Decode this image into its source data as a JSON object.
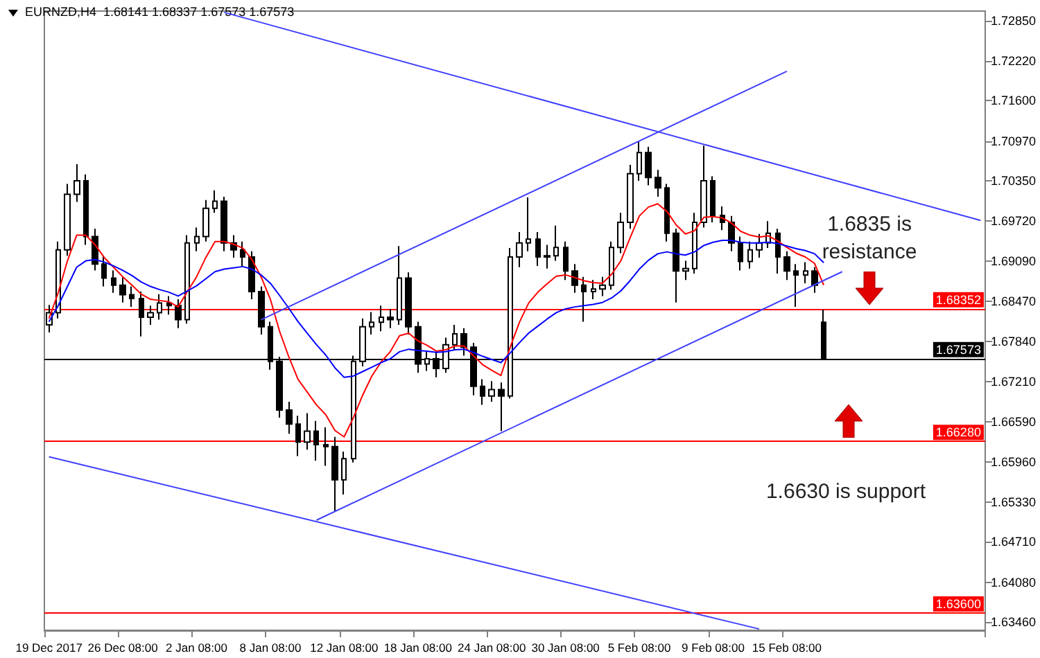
{
  "chart_data": {
    "type": "candlestick",
    "title": "EURNZD,H4  1.68141 1.68337 1.67573 1.67573",
    "categories": [
      "19 Dec 2017",
      null,
      null,
      null,
      null,
      null,
      null,
      null,
      "26 Dec 08:00",
      null,
      null,
      null,
      null,
      null,
      null,
      null,
      "2 Jan 08:00",
      null,
      null,
      null,
      null,
      null,
      null,
      null,
      "8 Jan 08:00",
      null,
      null,
      null,
      null,
      null,
      null,
      null,
      "12 Jan 08:00",
      null,
      null,
      null,
      null,
      null,
      null,
      null,
      "18 Jan 08:00",
      null,
      null,
      null,
      null,
      null,
      null,
      null,
      "24 Jan 08:00",
      null,
      null,
      null,
      null,
      null,
      null,
      null,
      "30 Jan 08:00",
      null,
      null,
      null,
      null,
      null,
      null,
      null,
      "5 Feb 08:00",
      null,
      null,
      null,
      null,
      null,
      null,
      null,
      "9 Feb 08:00",
      null,
      null,
      null,
      null,
      null,
      null,
      null,
      "15 Feb 08:00",
      null,
      null,
      null,
      null,
      null,
      null,
      null,
      null,
      null,
      null,
      null,
      null,
      null,
      null,
      null,
      null,
      null,
      null,
      null,
      null,
      null
    ],
    "color": "#000000",
    "ohlc": [
      [
        1.681,
        1.6841,
        1.6798,
        1.6829
      ],
      [
        1.6829,
        1.694,
        1.682,
        1.6927
      ],
      [
        1.6927,
        1.703,
        1.6918,
        1.7014
      ],
      [
        1.7014,
        1.7061,
        1.7002,
        1.7035
      ],
      [
        1.7035,
        1.7045,
        1.6935,
        1.6948
      ],
      [
        1.6948,
        1.696,
        1.6895,
        1.6905
      ],
      [
        1.6905,
        1.6918,
        1.687,
        1.6883
      ],
      [
        1.6883,
        1.6895,
        1.686,
        1.6872
      ],
      [
        1.6872,
        1.6884,
        1.6845,
        1.6857
      ],
      [
        1.6857,
        1.687,
        1.6838,
        1.6851
      ],
      [
        1.6851,
        1.6862,
        1.6792,
        1.6822
      ],
      [
        1.6822,
        1.684,
        1.681,
        1.6829
      ],
      [
        1.6829,
        1.6858,
        1.6818,
        1.6844
      ],
      [
        1.6844,
        1.6855,
        1.6826,
        1.684
      ],
      [
        1.684,
        1.685,
        1.6805,
        1.6818
      ],
      [
        1.6818,
        1.695,
        1.6812,
        1.6938
      ],
      [
        1.6938,
        1.6962,
        1.6925,
        1.6948
      ],
      [
        1.6948,
        1.7005,
        1.694,
        1.6992
      ],
      [
        1.6992,
        1.702,
        1.6985,
        1.7003
      ],
      [
        1.7003,
        1.701,
        1.6925,
        1.6938
      ],
      [
        1.6938,
        1.695,
        1.6915,
        1.6927
      ],
      [
        1.6927,
        1.694,
        1.69,
        1.6916
      ],
      [
        1.6916,
        1.6925,
        1.685,
        1.6862
      ],
      [
        1.6862,
        1.687,
        1.6795,
        1.6807
      ],
      [
        1.6807,
        1.6815,
        1.674,
        1.6753
      ],
      [
        1.6753,
        1.676,
        1.6665,
        1.6677
      ],
      [
        1.6677,
        1.669,
        1.664,
        1.6655
      ],
      [
        1.6655,
        1.6668,
        1.6605,
        1.6627
      ],
      [
        1.6627,
        1.6672,
        1.6615,
        1.6644
      ],
      [
        1.6644,
        1.666,
        1.6598,
        1.6623
      ],
      [
        1.6623,
        1.665,
        1.659,
        1.662
      ],
      [
        1.662,
        1.6635,
        1.6518,
        1.6568
      ],
      [
        1.6568,
        1.6612,
        1.6545,
        1.6601
      ],
      [
        1.6601,
        1.6762,
        1.6595,
        1.6753
      ],
      [
        1.6753,
        1.682,
        1.6745,
        1.6807
      ],
      [
        1.6807,
        1.683,
        1.6795,
        1.6814
      ],
      [
        1.6814,
        1.684,
        1.68,
        1.6822
      ],
      [
        1.6822,
        1.6835,
        1.6805,
        1.6818
      ],
      [
        1.6818,
        1.6933,
        1.681,
        1.6883
      ],
      [
        1.6883,
        1.6892,
        1.6795,
        1.6807
      ],
      [
        1.6807,
        1.6815,
        1.6735,
        1.6749
      ],
      [
        1.6749,
        1.677,
        1.6738,
        1.6757
      ],
      [
        1.6757,
        1.6768,
        1.6728,
        1.6742
      ],
      [
        1.6742,
        1.679,
        1.6735,
        1.6779
      ],
      [
        1.6779,
        1.681,
        1.677,
        1.6796
      ],
      [
        1.6796,
        1.6805,
        1.6762,
        1.6775
      ],
      [
        1.6775,
        1.6782,
        1.67,
        1.6714
      ],
      [
        1.6714,
        1.6725,
        1.6685,
        1.6699
      ],
      [
        1.6699,
        1.6722,
        1.669,
        1.6709
      ],
      [
        1.6709,
        1.672,
        1.6644,
        1.6699
      ],
      [
        1.6699,
        1.693,
        1.6695,
        1.6916
      ],
      [
        1.6916,
        1.6955,
        1.69,
        1.6938
      ],
      [
        1.6938,
        1.7009,
        1.6925,
        1.6944
      ],
      [
        1.6944,
        1.6955,
        1.6902,
        1.6916
      ],
      [
        1.6916,
        1.6935,
        1.6898,
        1.6918
      ],
      [
        1.6918,
        1.6965,
        1.691,
        1.6931
      ],
      [
        1.6931,
        1.694,
        1.688,
        1.6894
      ],
      [
        1.6894,
        1.6905,
        1.686,
        1.6872
      ],
      [
        1.6872,
        1.6885,
        1.6815,
        1.6862
      ],
      [
        1.6862,
        1.688,
        1.685,
        1.6866
      ],
      [
        1.6866,
        1.6885,
        1.6855,
        1.6872
      ],
      [
        1.6872,
        1.694,
        1.6865,
        1.6931
      ],
      [
        1.6931,
        1.6985,
        1.6922,
        1.697
      ],
      [
        1.697,
        1.706,
        1.696,
        1.7046
      ],
      [
        1.7046,
        1.7096,
        1.7035,
        1.7079
      ],
      [
        1.7079,
        1.7088,
        1.7028,
        1.704
      ],
      [
        1.704,
        1.7052,
        1.701,
        1.7024
      ],
      [
        1.7024,
        1.703,
        1.694,
        1.6953
      ],
      [
        1.6953,
        1.696,
        1.6845,
        1.6894
      ],
      [
        1.6894,
        1.691,
        1.688,
        1.6898
      ],
      [
        1.6898,
        1.6985,
        1.689,
        1.697
      ],
      [
        1.697,
        1.709,
        1.6962,
        1.7035
      ],
      [
        1.7035,
        1.7042,
        1.697,
        1.6981
      ],
      [
        1.6981,
        1.6995,
        1.6958,
        1.697
      ],
      [
        1.697,
        1.698,
        1.6925,
        1.6938
      ],
      [
        1.6938,
        1.6948,
        1.6895,
        1.6909
      ],
      [
        1.6909,
        1.694,
        1.6898,
        1.6927
      ],
      [
        1.6927,
        1.6952,
        1.6915,
        1.6938
      ],
      [
        1.6938,
        1.6972,
        1.693,
        1.6953
      ],
      [
        1.6953,
        1.696,
        1.689,
        1.6916
      ],
      [
        1.6916,
        1.6925,
        1.688,
        1.6894
      ],
      [
        1.6894,
        1.6905,
        1.6838,
        1.6888
      ],
      [
        1.6888,
        1.6908,
        1.6875,
        1.6894
      ],
      [
        1.6894,
        1.69,
        1.686,
        1.6872
      ],
      [
        1.68141,
        1.68337,
        1.67573,
        1.67573
      ],
      null,
      null,
      null,
      null,
      null,
      null,
      null,
      null,
      null,
      null,
      null,
      null,
      null,
      null,
      null,
      null,
      null
    ],
    "series": [
      {
        "type": "line",
        "color": "#ff0000",
        "values": [
          1.682,
          1.686,
          1.691,
          1.695,
          1.695,
          1.6935,
          1.6915,
          1.69,
          1.6885,
          1.6872,
          1.6858,
          1.685,
          1.6848,
          1.6846,
          1.6838,
          1.6862,
          1.6885,
          1.6915,
          1.694,
          1.694,
          1.6936,
          1.693,
          1.6912,
          1.6885,
          1.685,
          1.68,
          1.676,
          1.6725,
          1.6705,
          1.6685,
          1.667,
          1.6645,
          1.6635,
          1.6665,
          1.67,
          1.673,
          1.6752,
          1.6768,
          1.6793,
          1.6797,
          1.6785,
          1.6778,
          1.6769,
          1.6771,
          1.6777,
          1.6777,
          1.6762,
          1.6748,
          1.6739,
          1.6731,
          1.6775,
          1.6814,
          1.6844,
          1.6861,
          1.6874,
          1.6886,
          1.6888,
          1.6884,
          1.6879,
          1.6876,
          1.6875,
          1.6889,
          1.691,
          1.6946,
          1.698,
          1.6994,
          1.6999,
          1.6987,
          1.6966,
          1.6952,
          1.6957,
          1.6978,
          1.6979,
          1.6977,
          1.6969,
          1.6956,
          1.695,
          1.6947,
          1.6949,
          1.6941,
          1.6931,
          1.6922,
          1.6916,
          1.6906,
          1.6872,
          null,
          null,
          null,
          null,
          null,
          null,
          null,
          null,
          null,
          null,
          null,
          null,
          null,
          null,
          null,
          null,
          null
        ]
      },
      {
        "type": "line",
        "color": "#0000ff",
        "values": [
          1.6815,
          1.684,
          1.687,
          1.69,
          1.691,
          1.6912,
          1.6908,
          1.6902,
          1.6895,
          1.6887,
          1.6877,
          1.687,
          1.6865,
          1.6861,
          1.6855,
          1.6863,
          1.6871,
          1.6882,
          1.6893,
          1.6897,
          1.6899,
          1.6901,
          1.6897,
          1.6888,
          1.6875,
          1.6856,
          1.6836,
          1.6815,
          1.6797,
          1.6779,
          1.6763,
          1.6743,
          1.6728,
          1.673,
          1.6737,
          1.6744,
          1.6751,
          1.6757,
          1.6768,
          1.6772,
          1.677,
          1.6769,
          1.6767,
          1.6768,
          1.6771,
          1.6772,
          1.6767,
          1.6761,
          1.6756,
          1.6751,
          1.6766,
          1.6782,
          1.6797,
          1.6808,
          1.6819,
          1.6829,
          1.6835,
          1.6838,
          1.684,
          1.6842,
          1.6845,
          1.6852,
          1.6863,
          1.6879,
          1.6897,
          1.6911,
          1.6921,
          1.6924,
          1.6921,
          1.6919,
          1.6924,
          1.6934,
          1.6939,
          1.6942,
          1.6942,
          1.6939,
          1.6938,
          1.6938,
          1.6939,
          1.6937,
          1.6933,
          1.6929,
          1.6926,
          1.6921,
          1.6907,
          null,
          null,
          null,
          null,
          null,
          null,
          null,
          null,
          null,
          null,
          null,
          null,
          null,
          null,
          null,
          null,
          null
        ]
      },
      {
        "type": "line",
        "color": "#4040ff",
        "values": [
          null,
          null,
          null,
          null,
          null,
          null,
          null,
          null,
          null,
          null,
          null,
          null,
          null,
          null,
          null,
          null,
          null,
          null,
          null,
          1.7298,
          null,
          null,
          null,
          null,
          null,
          null,
          null,
          null,
          null,
          null,
          null,
          null,
          null,
          null,
          null,
          null,
          null,
          null,
          null,
          null,
          null,
          null,
          null,
          null,
          null,
          null,
          null,
          null,
          null,
          null,
          null,
          null,
          null,
          null,
          null,
          null,
          null,
          null,
          null,
          null,
          null,
          null,
          null,
          null,
          null,
          null,
          null,
          null,
          null,
          null,
          null,
          null,
          null,
          null,
          null,
          null,
          null,
          null,
          null,
          null,
          null,
          null,
          null,
          null,
          null,
          null,
          null,
          null,
          null,
          null,
          null,
          null,
          null,
          null,
          null,
          null,
          null,
          null,
          null,
          null,
          null,
          1.6973
        ]
      },
      {
        "type": "line",
        "color": "#4040ff",
        "values": [
          1.6604,
          null,
          null,
          null,
          null,
          null,
          null,
          null,
          null,
          null,
          null,
          null,
          null,
          null,
          null,
          null,
          null,
          null,
          null,
          null,
          null,
          null,
          null,
          null,
          null,
          null,
          null,
          null,
          null,
          null,
          null,
          null,
          null,
          null,
          null,
          null,
          null,
          null,
          null,
          null,
          null,
          null,
          null,
          null,
          null,
          null,
          null,
          null,
          null,
          null,
          null,
          null,
          null,
          null,
          null,
          null,
          null,
          null,
          null,
          null,
          null,
          null,
          null,
          null,
          null,
          null,
          null,
          null,
          null,
          null,
          null,
          null,
          null,
          null,
          null,
          null,
          null,
          1.6335,
          null,
          null,
          null,
          null,
          null,
          null,
          null,
          null,
          null,
          null,
          null,
          null,
          null,
          null,
          null,
          null,
          null,
          null,
          null,
          null,
          null,
          null,
          null,
          null
        ]
      },
      {
        "type": "line",
        "color": "#4040ff",
        "values": [
          null,
          null,
          null,
          null,
          null,
          null,
          null,
          null,
          null,
          null,
          null,
          null,
          null,
          null,
          null,
          null,
          null,
          null,
          null,
          null,
          null,
          null,
          null,
          1.6818,
          null,
          null,
          null,
          null,
          null,
          null,
          null,
          null,
          null,
          null,
          null,
          null,
          null,
          null,
          null,
          null,
          null,
          null,
          null,
          null,
          null,
          null,
          null,
          null,
          null,
          null,
          null,
          null,
          null,
          null,
          null,
          null,
          null,
          null,
          null,
          null,
          null,
          null,
          null,
          null,
          null,
          null,
          null,
          null,
          null,
          null,
          null,
          null,
          null,
          null,
          null,
          null,
          null,
          null,
          null,
          null,
          1.7206,
          null,
          null,
          null,
          null,
          null,
          null,
          null,
          null,
          null,
          null,
          null,
          null,
          null,
          null,
          null,
          null,
          null,
          null,
          null,
          null,
          null
        ]
      },
      {
        "type": "line",
        "color": "#4040ff",
        "values": [
          null,
          null,
          null,
          null,
          null,
          null,
          null,
          null,
          null,
          null,
          null,
          null,
          null,
          null,
          null,
          null,
          null,
          null,
          null,
          null,
          null,
          null,
          null,
          null,
          null,
          null,
          null,
          null,
          null,
          1.6505,
          null,
          null,
          null,
          null,
          null,
          null,
          null,
          null,
          null,
          null,
          null,
          null,
          null,
          null,
          null,
          null,
          null,
          null,
          null,
          null,
          null,
          null,
          null,
          null,
          null,
          null,
          null,
          null,
          null,
          null,
          null,
          null,
          null,
          null,
          null,
          null,
          null,
          null,
          null,
          null,
          null,
          null,
          null,
          null,
          null,
          null,
          null,
          null,
          null,
          null,
          null,
          null,
          null,
          null,
          null,
          null,
          1.6893,
          null,
          null,
          null,
          null,
          null,
          null,
          null,
          null,
          null,
          null,
          null,
          null,
          null,
          null,
          null
        ]
      }
    ],
    "ylim": [
      1.6333,
      1.73
    ],
    "yticks": [
      {
        "value": 1.7285,
        "label": "1.72850"
      },
      {
        "value": 1.7222,
        "label": "1.72220"
      },
      {
        "value": 1.716,
        "label": "1.71600"
      },
      {
        "value": 1.7097,
        "label": "1.70970"
      },
      {
        "value": 1.7035,
        "label": "1.70350"
      },
      {
        "value": 1.6972,
        "label": "1.69720"
      },
      {
        "value": 1.6909,
        "label": "1.69090"
      },
      {
        "value": 1.6847,
        "label": "1.68470"
      },
      {
        "value": 1.6784,
        "label": "1.67840"
      },
      {
        "value": 1.6721,
        "label": "1.67210"
      },
      {
        "value": 1.6659,
        "label": "1.66590"
      },
      {
        "value": 1.6596,
        "label": "1.65960"
      },
      {
        "value": 1.6533,
        "label": "1.65330"
      },
      {
        "value": 1.6471,
        "label": "1.64710"
      },
      {
        "value": 1.6408,
        "label": "1.64080"
      },
      {
        "value": 1.6346,
        "label": "1.63460"
      }
    ],
    "ref_lines": [
      {
        "axis": "y",
        "value": 1.68352,
        "label": "1.68352",
        "color": "#ff0000"
      },
      {
        "axis": "y",
        "value": 1.67573,
        "label": "1.67573",
        "color": "#000000"
      },
      {
        "axis": "y",
        "value": 1.6628,
        "label": "1.66280",
        "color": "#ff0000"
      },
      {
        "axis": "y",
        "value": 1.636,
        "label": "1.63600",
        "color": "#ff0000"
      }
    ],
    "annotations": [
      "1.6835 is\nresistance",
      "1.6630 is support"
    ],
    "grid": false,
    "marker": "none"
  }
}
